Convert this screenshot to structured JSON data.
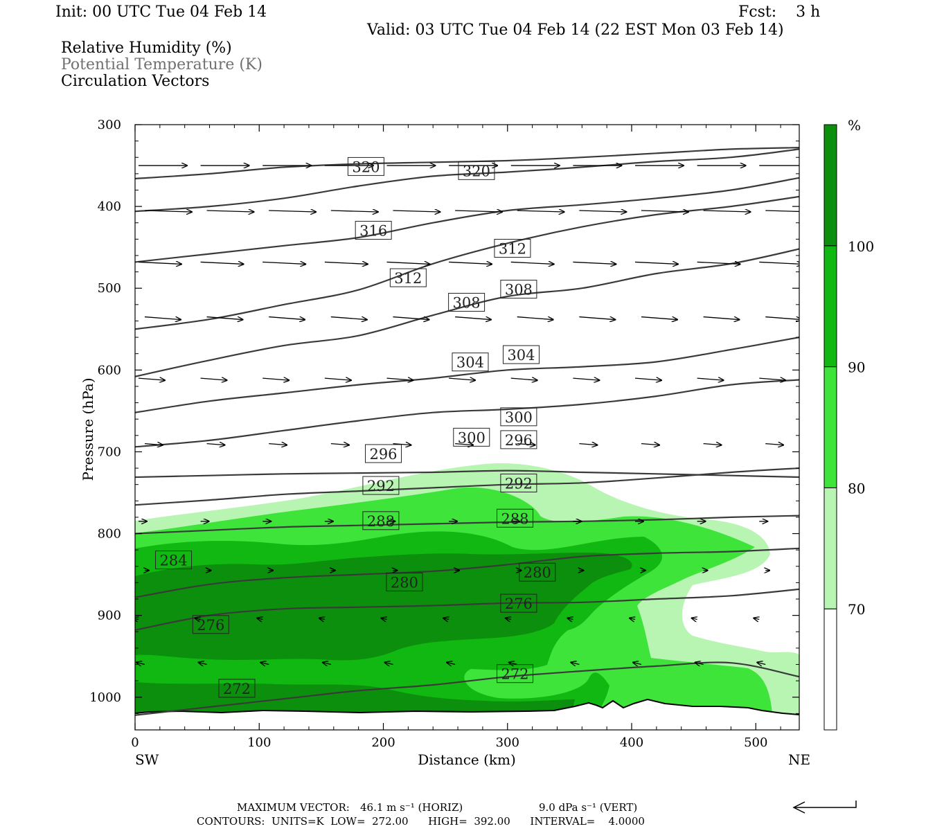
{
  "header": {
    "init": "Init: 00 UTC Tue 04 Feb 14",
    "fcst": "Fcst:    3 h",
    "valid": "Valid: 03 UTC Tue 04 Feb 14 (22 EST Mon 03 Feb 14)",
    "fields": [
      "Relative Humidity (%)",
      "Potential Temperature (K)",
      "Circulation Vectors"
    ]
  },
  "footer": {
    "line1_label": "MAXIMUM VECTOR:",
    "line1_horiz": "46.1 m s⁻¹ (HORIZ)",
    "line1_vert": "9.0 dPa s⁻¹ (VERT)",
    "line2": "CONTOURS:  UNITS=K  LOW=  272.00      HIGH=  392.00      INTERVAL=    4.0000"
  },
  "colors": {
    "rh_70": "#b8f5b3",
    "rh_80": "#3ee43a",
    "rh_90": "#12b812",
    "rh_100": "#0c8f0c",
    "contour": "#3a3a3a"
  },
  "chart_data": {
    "type": "cross-section",
    "xlabel": "Distance (km)",
    "ylabel": "Pressure (hPa)",
    "xlim": [
      0,
      535
    ],
    "ylim": [
      1040,
      300
    ],
    "x_ticks": [
      0,
      100,
      200,
      300,
      400,
      500
    ],
    "y_ticks": [
      300,
      400,
      500,
      600,
      700,
      800,
      900,
      1000
    ],
    "x_end_labels": [
      "SW",
      "NE"
    ],
    "colorbar": {
      "unit": "%",
      "levels": [
        70,
        80,
        90,
        100
      ],
      "colors": [
        "#ffffff",
        "#b8f5b3",
        "#3ee43a",
        "#12b812",
        "#0c8f0c"
      ]
    },
    "theta_contours": [
      {
        "value": 320,
        "pressure": [
          366,
          360,
          352,
          348,
          346,
          344,
          340,
          335,
          330,
          328
        ],
        "labels": [
          [
            186,
            352
          ],
          [
            275,
            357
          ]
        ]
      },
      {
        "value": 316,
        "pressure": [
          406,
          400,
          390,
          375,
          363,
          358,
          352,
          345,
          340,
          330
        ],
        "labels": [
          [
            192,
            430
          ]
        ]
      },
      {
        "value": 312,
        "pressure": [
          468,
          458,
          448,
          438,
          420,
          405,
          398,
          390,
          380,
          365
        ],
        "labels": [
          [
            220,
            488
          ],
          [
            304,
            452
          ]
        ]
      },
      {
        "value": 308,
        "pressure": [
          550,
          538,
          520,
          502,
          470,
          445,
          425,
          410,
          400,
          388
        ],
        "labels": [
          [
            267,
            518
          ],
          [
            309,
            502
          ]
        ]
      },
      {
        "value": 304,
        "pressure": [
          608,
          588,
          570,
          558,
          533,
          510,
          500,
          482,
          470,
          452
        ],
        "labels": [
          [
            270,
            591
          ],
          [
            311,
            582
          ]
        ]
      },
      {
        "value": 300,
        "pressure": [
          652,
          638,
          628,
          618,
          610,
          600,
          596,
          590,
          575,
          560
        ],
        "labels": [
          [
            271,
            683
          ],
          [
            309,
            658
          ]
        ]
      },
      {
        "value": 296,
        "pressure": [
          694,
          686,
          674,
          662,
          652,
          648,
          642,
          632,
          618,
          612
        ],
        "labels": [
          [
            200,
            703
          ],
          [
            309,
            686
          ]
        ]
      },
      {
        "value": 292,
        "pressure": [
          731,
          729,
          727,
          726,
          725,
          723,
          725,
          727,
          729,
          731
        ],
        "labels": [
          [
            198,
            742
          ],
          [
            309,
            739
          ]
        ]
      },
      {
        "value": 288,
        "pressure": [
          765,
          759,
          752,
          748,
          744,
          740,
          738,
          732,
          725,
          720
        ],
        "labels": [
          [
            198,
            785
          ],
          [
            306,
            782
          ]
        ]
      },
      {
        "value": 284,
        "pressure": [
          800,
          796,
          792,
          790,
          788,
          786,
          785,
          783,
          780,
          778
        ],
        "labels": [
          [
            31,
            833
          ]
        ]
      },
      {
        "value": 280,
        "pressure": [
          878,
          862,
          854,
          850,
          846,
          838,
          828,
          824,
          822,
          818
        ],
        "labels": [
          [
            217,
            860
          ],
          [
            324,
            848
          ]
        ]
      },
      {
        "value": 276,
        "pressure": [
          918,
          900,
          892,
          890,
          888,
          885,
          884,
          880,
          876,
          868
        ],
        "labels": [
          [
            61,
            912
          ],
          [
            309,
            886
          ]
        ]
      },
      {
        "value": 272,
        "pressure": [
          1022,
          1012,
          1002,
          992,
          985,
          975,
          968,
          962,
          958,
          975
        ],
        "labels": [
          [
            82,
            990
          ],
          [
            306,
            972
          ]
        ]
      }
    ],
    "theta_x": [
      0,
      60,
      120,
      180,
      240,
      300,
      360,
      420,
      480,
      535
    ],
    "max_vector": {
      "horizontal_m_s": 46.1,
      "vertical_dPa_s": 9.0
    },
    "contour_units": "K",
    "contour_low": 272.0,
    "contour_high": 392.0,
    "contour_interval": 4.0
  }
}
